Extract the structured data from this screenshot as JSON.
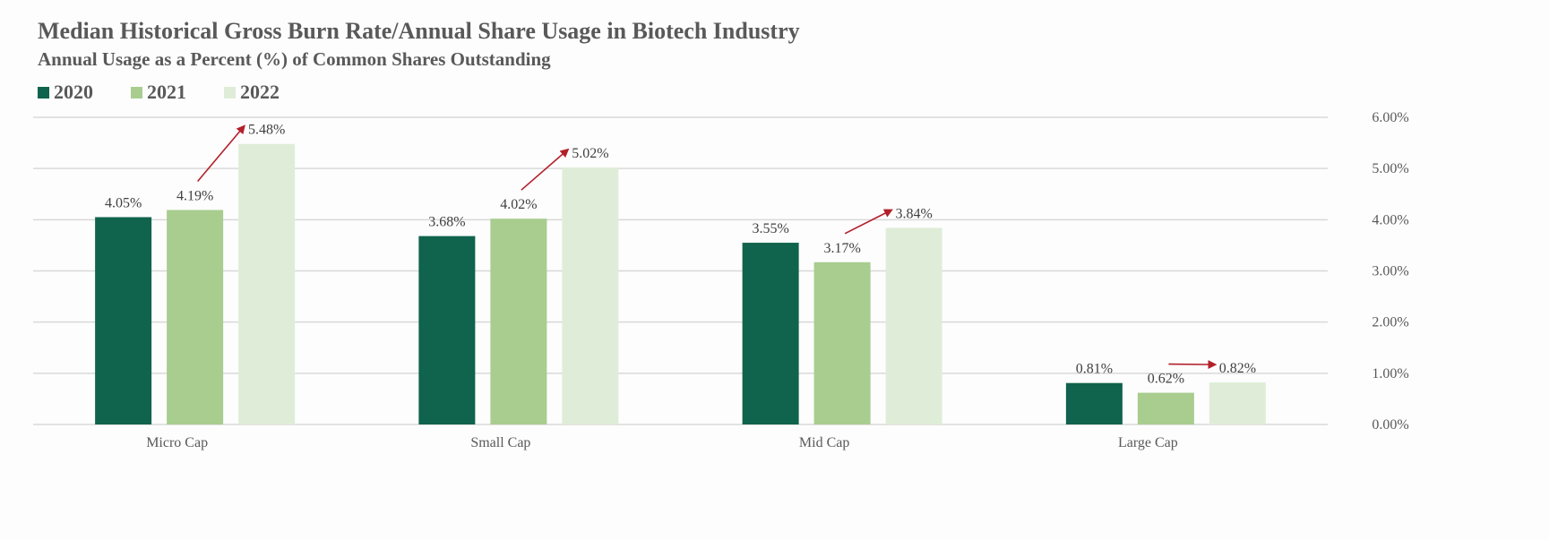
{
  "chart_data": {
    "type": "bar",
    "title": "Median Historical Gross Burn Rate/Annual Share Usage in Biotech Industry",
    "subtitle": "Annual Usage as a Percent (%) of Common Shares Outstanding",
    "categories": [
      "Micro Cap",
      "Small Cap",
      "Mid Cap",
      "Large Cap"
    ],
    "series": [
      {
        "name": "2020",
        "color": "#10634c",
        "values": [
          4.05,
          3.68,
          3.55,
          0.81
        ],
        "labels": [
          "4.05%",
          "3.68%",
          "3.55%",
          "0.81%"
        ]
      },
      {
        "name": "2021",
        "color": "#a8cd8f",
        "values": [
          4.19,
          4.02,
          3.17,
          0.62
        ],
        "labels": [
          "4.19%",
          "4.02%",
          "3.17%",
          "0.62%"
        ]
      },
      {
        "name": "2022",
        "color": "#dfedd8",
        "values": [
          5.48,
          5.02,
          3.84,
          0.82
        ],
        "labels": [
          "5.48%",
          "5.02%",
          "3.84%",
          "0.82%"
        ]
      }
    ],
    "ylim": [
      0,
      6
    ],
    "yticks": [
      0,
      1,
      2,
      3,
      4,
      5,
      6
    ],
    "ytick_labels": [
      "0.00%",
      "1.00%",
      "2.00%",
      "3.00%",
      "4.00%",
      "5.00%",
      "6.00%"
    ],
    "y_axis_position": "right",
    "grid": true,
    "legend_position": "top-left",
    "annotations": "red arrows pointing from 2021 bar label to 2022 bar label in each category",
    "arrow_color": "#b3202a"
  }
}
